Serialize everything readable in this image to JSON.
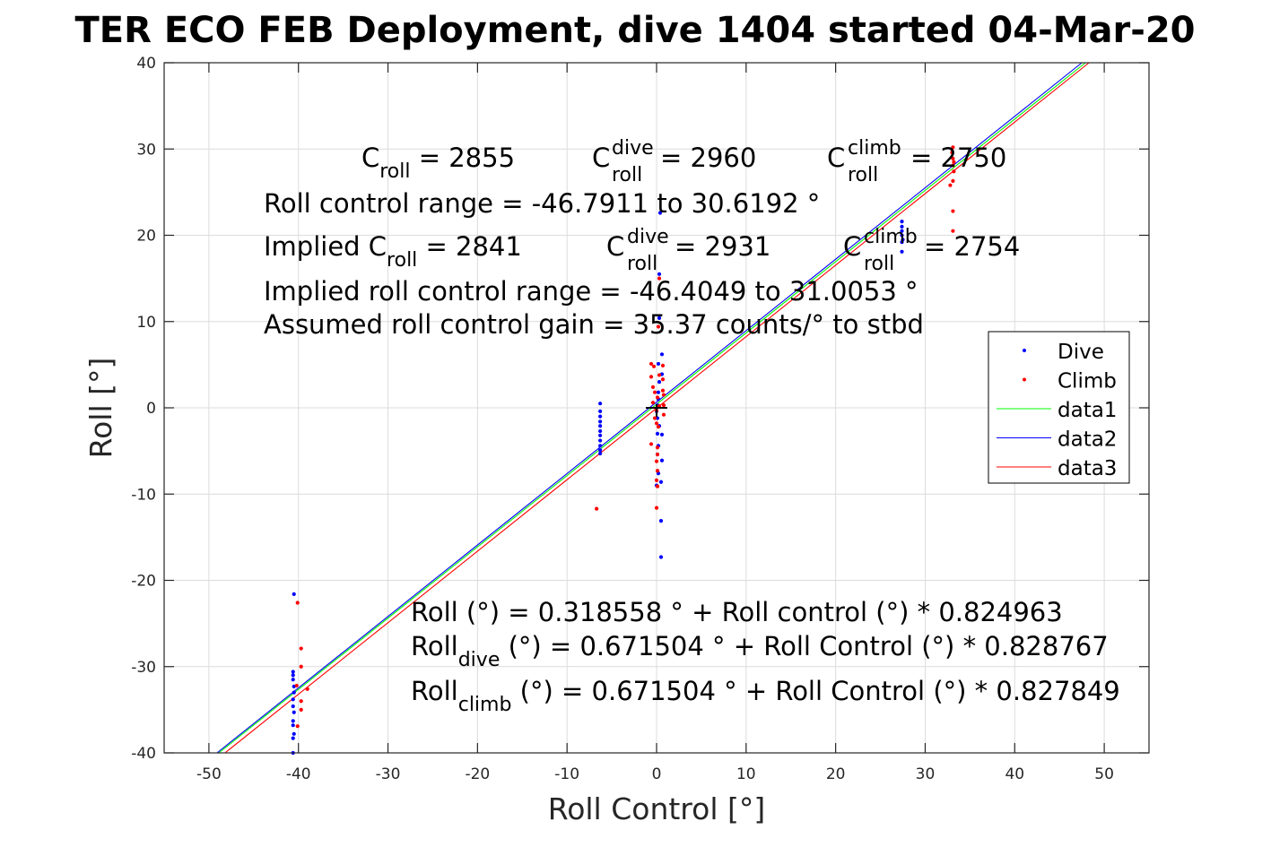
{
  "chart_data": {
    "type": "scatter",
    "title": "TER ECO FEB Deployment, dive 1404 started 04-Mar-20",
    "xlabel": "Roll Control [°]",
    "ylabel": "Roll [°]",
    "xlim": [
      -55,
      55
    ],
    "ylim": [
      -40,
      40
    ],
    "grid": true,
    "xticks": [
      -50,
      -40,
      -30,
      -20,
      -10,
      0,
      10,
      20,
      30,
      40,
      50
    ],
    "yticks": [
      -40,
      -30,
      -20,
      -10,
      0,
      10,
      20,
      30,
      40
    ],
    "xtick_labels": [
      "-50",
      "-40",
      "-30",
      "-20",
      "-10",
      "0",
      "10",
      "20",
      "30",
      "40",
      "50"
    ],
    "ytick_labels": [
      "-40",
      "-30",
      "-20",
      "-10",
      "0",
      "10",
      "20",
      "30",
      "40"
    ],
    "legend_position": "right",
    "series": [
      {
        "name": "Dive",
        "kind": "points",
        "color": "#0000ff",
        "points": [
          [
            -40.5,
            -21.6
          ],
          [
            -40.6,
            -30.6
          ],
          [
            -40.6,
            -31.0
          ],
          [
            -40.6,
            -31.5
          ],
          [
            -40.5,
            -32.3
          ],
          [
            -40.5,
            -33.0
          ],
          [
            -40.6,
            -33.8
          ],
          [
            -40.6,
            -34.6
          ],
          [
            -40.5,
            -35.3
          ],
          [
            -40.6,
            -36.3
          ],
          [
            -40.6,
            -36.8
          ],
          [
            -40.5,
            -37.8
          ],
          [
            -40.6,
            -38.3
          ],
          [
            -40.6,
            -40.0
          ],
          [
            -6.3,
            0.5
          ],
          [
            -6.3,
            -0.4
          ],
          [
            -6.3,
            -1.0
          ],
          [
            -6.3,
            -1.6
          ],
          [
            -6.3,
            -2.1
          ],
          [
            -6.3,
            -2.7
          ],
          [
            -6.3,
            -3.2
          ],
          [
            -6.3,
            -3.8
          ],
          [
            -6.3,
            -4.4
          ],
          [
            -6.3,
            -4.9
          ],
          [
            -6.3,
            -5.3
          ],
          [
            0.4,
            22.6
          ],
          [
            0.3,
            15.5
          ],
          [
            0.3,
            10.4
          ],
          [
            0.6,
            6.2
          ],
          [
            0.2,
            5.1
          ],
          [
            0.6,
            3.9
          ],
          [
            0.3,
            3.0
          ],
          [
            0.2,
            1.8
          ],
          [
            0.2,
            1.0
          ],
          [
            0.1,
            0.3
          ],
          [
            0.0,
            -0.4
          ],
          [
            0.1,
            -1.2
          ],
          [
            0.3,
            -2.1
          ],
          [
            0.1,
            -3.0
          ],
          [
            0.6,
            -3.1
          ],
          [
            0.2,
            -4.4
          ],
          [
            0.1,
            -5.4
          ],
          [
            0.6,
            -6.1
          ],
          [
            0.2,
            -7.6
          ],
          [
            0.5,
            -8.6
          ],
          [
            0.0,
            -9.0
          ],
          [
            0.5,
            -13.1
          ],
          [
            0.5,
            -17.3
          ],
          [
            27.4,
            21.6
          ],
          [
            27.4,
            21.0
          ],
          [
            27.4,
            20.5
          ],
          [
            27.4,
            20.0
          ],
          [
            27.5,
            19.5
          ],
          [
            27.4,
            19.2
          ],
          [
            27.4,
            18.1
          ]
        ]
      },
      {
        "name": "Climb",
        "kind": "points",
        "color": "#ff0000",
        "points": [
          [
            -40.1,
            -22.6
          ],
          [
            -39.7,
            -27.9
          ],
          [
            -39.7,
            -30.0
          ],
          [
            -40.2,
            -32.2
          ],
          [
            -39.0,
            -32.6
          ],
          [
            -39.7,
            -34.0
          ],
          [
            -39.7,
            -35.0
          ],
          [
            -40.1,
            -36.9
          ],
          [
            -6.7,
            -11.7
          ],
          [
            -0.6,
            5.1
          ],
          [
            -0.3,
            4.8
          ],
          [
            0.7,
            4.9
          ],
          [
            0.3,
            3.8
          ],
          [
            -0.6,
            3.6
          ],
          [
            0.7,
            3.3
          ],
          [
            -0.4,
            2.4
          ],
          [
            0.7,
            2.0
          ],
          [
            -0.2,
            1.8
          ],
          [
            0.1,
            1.2
          ],
          [
            0.8,
            1.5
          ],
          [
            -0.4,
            0.6
          ],
          [
            0.3,
            0.2
          ],
          [
            0.8,
            0.3
          ],
          [
            0.0,
            -0.3
          ],
          [
            0.8,
            -0.8
          ],
          [
            -0.2,
            -1.2
          ],
          [
            0.0,
            -1.8
          ],
          [
            0.2,
            -2.2
          ],
          [
            -0.6,
            -4.2
          ],
          [
            0.1,
            -4.6
          ],
          [
            0.1,
            -5.4
          ],
          [
            0.0,
            -6.2
          ],
          [
            0.1,
            -7.3
          ],
          [
            0.0,
            -8.4
          ],
          [
            0.1,
            -9.1
          ],
          [
            0.0,
            -11.6
          ],
          [
            0.3,
            15.0
          ],
          [
            0.2,
            9.4
          ],
          [
            33.1,
            30.2
          ],
          [
            33.0,
            29.6
          ],
          [
            33.1,
            28.9
          ],
          [
            33.2,
            28.5
          ],
          [
            33.1,
            28.1
          ],
          [
            33.2,
            27.4
          ],
          [
            33.1,
            26.3
          ],
          [
            32.8,
            25.8
          ],
          [
            33.1,
            22.8
          ],
          [
            33.1,
            20.5
          ]
        ]
      },
      {
        "name": "data1",
        "kind": "line",
        "color": "#00ff00",
        "x": [
          -48.9,
          47.9
        ],
        "y": [
          -40,
          40
        ]
      },
      {
        "name": "data2",
        "kind": "line",
        "color": "#0000ff",
        "x": [
          -49.1,
          47.5
        ],
        "y": [
          -40,
          40
        ]
      },
      {
        "name": "data3",
        "kind": "line",
        "color": "#ff0000",
        "x": [
          -48.2,
          48.3
        ],
        "y": [
          -40,
          40
        ]
      }
    ],
    "origin_marker": {
      "x": 0,
      "y": 0,
      "color": "#000000"
    },
    "annotations": {
      "c_roll": {
        "main": "C",
        "sub": "roll",
        "value": " = 2855"
      },
      "c_roll_dive": {
        "main": "C",
        "sup": "dive",
        "sub": "roll",
        "value": " = 2960"
      },
      "c_roll_climb": {
        "main": "C",
        "sup": "climb",
        "sub": "roll",
        "value": " = 2750"
      },
      "roll_control_range": "Roll control range = -46.7911 to 30.6192 °",
      "implied_c_roll": {
        "prefix": "Implied C",
        "sub": "roll",
        "value": " = 2841"
      },
      "implied_c_roll_dive": {
        "main": "C",
        "sup": "dive",
        "sub": "roll",
        "value": " = 2931"
      },
      "implied_c_roll_climb": {
        "main": "C",
        "sup": "climb",
        "sub": "roll",
        "value": " = 2754"
      },
      "implied_range": "Implied roll control range = -46.4049 to 31.0053 °",
      "gain": "Assumed roll control gain = 35.37 counts/° to stbd",
      "fit_all": "Roll (°) = 0.318558 ° + Roll control (°) * 0.824963",
      "fit_dive": {
        "main": "Roll",
        "sub": "dive",
        "rest": " (°) = 0.671504 ° + Roll Control (°) * 0.828767"
      },
      "fit_climb": {
        "main": "Roll",
        "sub": "climb",
        "rest": " (°) = 0.671504 ° + Roll Control (°) * 0.827849"
      }
    }
  }
}
